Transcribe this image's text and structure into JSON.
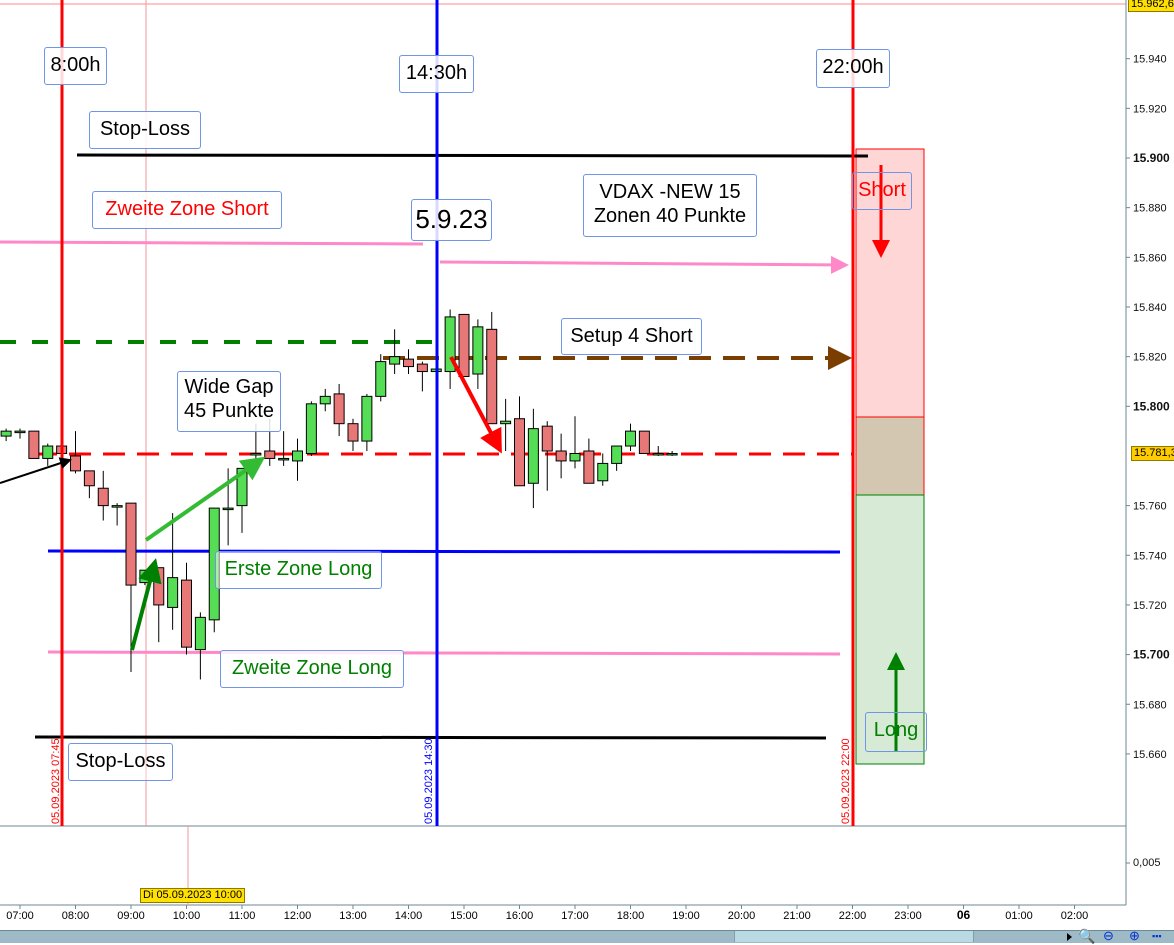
{
  "chart_data": {
    "type": "candlestick",
    "ylim": [
      15650,
      15963
    ],
    "y_ticks": [
      "15.940",
      "15.920",
      "15.900",
      "15.880",
      "15.860",
      "15.840",
      "15.820",
      "15.800",
      "15.760",
      "15.740",
      "15.720",
      "15.700",
      "15.680",
      "15.660"
    ],
    "y_ticks_bold": [
      "15.900",
      "15.800",
      "15.700"
    ],
    "x_ticks": [
      "07:00",
      "08:00",
      "09:00",
      "10:00",
      "11:00",
      "12:00",
      "13:00",
      "14:00",
      "15:00",
      "16:00",
      "17:00",
      "18:00",
      "19:00",
      "20:00",
      "21:00",
      "22:00",
      "23:00",
      "06",
      "01:00",
      "02:00"
    ],
    "grid": false,
    "candles": [
      {
        "t": "06:45",
        "o": 15788,
        "h": 15791,
        "l": 15786,
        "c": 15790
      },
      {
        "t": "07:00",
        "o": 15790,
        "h": 15791,
        "l": 15787,
        "c": 15790
      },
      {
        "t": "07:15",
        "o": 15790,
        "h": 15790,
        "l": 15779,
        "c": 15779
      },
      {
        "t": "07:30",
        "o": 15779,
        "h": 15785,
        "l": 15776,
        "c": 15784
      },
      {
        "t": "07:45",
        "o": 15784,
        "h": 15784,
        "l": 15780,
        "c": 15781
      },
      {
        "t": "08:00",
        "o": 15780,
        "h": 15790,
        "l": 15773,
        "c": 15774
      },
      {
        "t": "08:15",
        "o": 15774,
        "h": 15774,
        "l": 15763,
        "c": 15768
      },
      {
        "t": "08:30",
        "o": 15767,
        "h": 15774,
        "l": 15754,
        "c": 15760
      },
      {
        "t": "08:45",
        "o": 15760,
        "h": 15761,
        "l": 15752,
        "c": 15760
      },
      {
        "t": "09:00",
        "o": 15761,
        "h": 15761,
        "l": 15693,
        "c": 15728
      },
      {
        "t": "09:15",
        "o": 15729,
        "h": 15734,
        "l": 15728,
        "c": 15734
      },
      {
        "t": "09:30",
        "o": 15735,
        "h": 15735,
        "l": 15705,
        "c": 15720
      },
      {
        "t": "09:45",
        "o": 15719,
        "h": 15757,
        "l": 15710,
        "c": 15731
      },
      {
        "t": "10:00",
        "o": 15730,
        "h": 15737,
        "l": 15700,
        "c": 15703
      },
      {
        "t": "10:15",
        "o": 15702,
        "h": 15717,
        "l": 15690,
        "c": 15715
      },
      {
        "t": "10:30",
        "o": 15714,
        "h": 15759,
        "l": 15709,
        "c": 15759
      },
      {
        "t": "10:45",
        "o": 15759,
        "h": 15775,
        "l": 15744,
        "c": 15759
      },
      {
        "t": "11:00",
        "o": 15760,
        "h": 15775,
        "l": 15749,
        "c": 15775
      },
      {
        "t": "11:15",
        "o": 15781,
        "h": 15793,
        "l": 15778,
        "c": 15781
      },
      {
        "t": "11:30",
        "o": 15782,
        "h": 15795,
        "l": 15776,
        "c": 15779
      },
      {
        "t": "11:45",
        "o": 15779,
        "h": 15790,
        "l": 15776,
        "c": 15779
      },
      {
        "t": "12:00",
        "o": 15778,
        "h": 15787,
        "l": 15770,
        "c": 15782
      },
      {
        "t": "12:15",
        "o": 15781,
        "h": 15802,
        "l": 15780,
        "c": 15801
      },
      {
        "t": "12:30",
        "o": 15801,
        "h": 15807,
        "l": 15798,
        "c": 15804
      },
      {
        "t": "12:45",
        "o": 15805,
        "h": 15809,
        "l": 15788,
        "c": 15793
      },
      {
        "t": "13:00",
        "o": 15793,
        "h": 15795,
        "l": 15782,
        "c": 15786
      },
      {
        "t": "13:15",
        "o": 15786,
        "h": 15805,
        "l": 15782,
        "c": 15804
      },
      {
        "t": "13:30",
        "o": 15804,
        "h": 15821,
        "l": 15802,
        "c": 15818
      },
      {
        "t": "13:45",
        "o": 15817,
        "h": 15831,
        "l": 15813,
        "c": 15820
      },
      {
        "t": "14:00",
        "o": 15819,
        "h": 15823,
        "l": 15813,
        "c": 15816
      },
      {
        "t": "14:15",
        "o": 15817,
        "h": 15818,
        "l": 15806,
        "c": 15814
      },
      {
        "t": "14:30",
        "o": 15814,
        "h": 15815,
        "l": 15814,
        "c": 15815
      },
      {
        "t": "14:45",
        "o": 15814,
        "h": 15839,
        "l": 15807,
        "c": 15836
      },
      {
        "t": "15:00",
        "o": 15837,
        "h": 15837,
        "l": 15812,
        "c": 15812
      },
      {
        "t": "15:15",
        "o": 15813,
        "h": 15835,
        "l": 15807,
        "c": 15832
      },
      {
        "t": "15:30",
        "o": 15831,
        "h": 15838,
        "l": 15793,
        "c": 15793
      },
      {
        "t": "15:45",
        "o": 15793,
        "h": 15803,
        "l": 15782,
        "c": 15794
      },
      {
        "t": "16:00",
        "o": 15795,
        "h": 15804,
        "l": 15768,
        "c": 15768
      },
      {
        "t": "16:15",
        "o": 15769,
        "h": 15799,
        "l": 15759,
        "c": 15791
      },
      {
        "t": "16:30",
        "o": 15792,
        "h": 15794,
        "l": 15766,
        "c": 15782
      },
      {
        "t": "16:45",
        "o": 15782,
        "h": 15789,
        "l": 15771,
        "c": 15778
      },
      {
        "t": "17:00",
        "o": 15778,
        "h": 15796,
        "l": 15775,
        "c": 15781
      },
      {
        "t": "17:15",
        "o": 15782,
        "h": 15787,
        "l": 15769,
        "c": 15769
      },
      {
        "t": "17:30",
        "o": 15770,
        "h": 15781,
        "l": 15768,
        "c": 15777
      },
      {
        "t": "17:45",
        "o": 15777,
        "h": 15784,
        "l": 15774,
        "c": 15784
      },
      {
        "t": "18:00",
        "o": 15784,
        "h": 15793,
        "l": 15782,
        "c": 15790
      },
      {
        "t": "18:15",
        "o": 15790,
        "h": 15790,
        "l": 15781,
        "c": 15781
      },
      {
        "t": "18:30",
        "o": 15781,
        "h": 15784,
        "l": 15780,
        "c": 15781
      },
      {
        "t": "18:45",
        "o": 15781,
        "h": 15782,
        "l": 15780,
        "c": 15781
      }
    ],
    "colors": {
      "up": "#55dd55",
      "down": "#e87878"
    }
  },
  "price_tags": {
    "high": "15.962,6",
    "last": "15.781,3"
  },
  "volume_tick": "0,005",
  "crosshair_date": "Di 05.09.2023 10:00",
  "annotations": {
    "time_8": "8:00h",
    "time_1430": "14:30h",
    "time_22": "22:00h",
    "stop_loss_top": "Stop-Loss",
    "stop_loss_bottom": "Stop-Loss",
    "zweite_zone_short": "Zweite Zone Short",
    "date": "5.9.23",
    "vdax_line1": "VDAX -NEW 15",
    "vdax_line2": "Zonen 40 Punkte",
    "setup": "Setup 4 Short",
    "wide_gap_line1": "Wide Gap",
    "wide_gap_line2": "45 Punkte",
    "erste_zone_long": "Erste Zone Long",
    "zweite_zone_long": "Zweite Zone Long",
    "short": "Short",
    "long": "Long",
    "vline_0745": "05.09.2023 07:45",
    "vline_1430": "05.09.2023 14:30",
    "vline_2200": "05.09.2023 22:00"
  },
  "colors": {
    "red": "#ff0000",
    "blue": "#0000ff",
    "pink": "#ff88c8",
    "green": "#008000",
    "brown": "#7a3e00",
    "short_zone": "#ffd6d6",
    "neutral_zone": "#d4c7b2",
    "long_zone": "#d6ead6"
  },
  "toolbar": {
    "icons": [
      "zoom-vertical-icon",
      "zoom-out-icon",
      "zoom-in-icon",
      "fit-icon"
    ]
  }
}
